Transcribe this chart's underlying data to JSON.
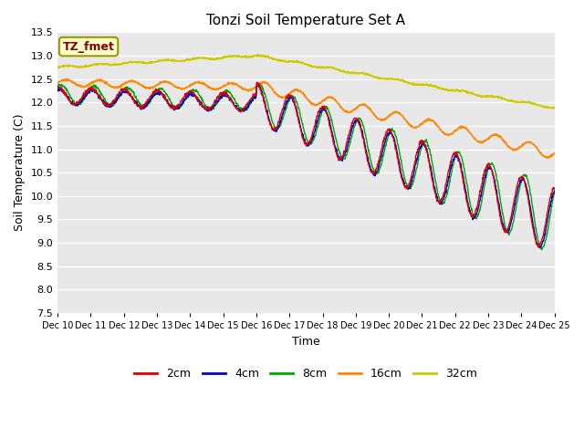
{
  "title": "Tonzi Soil Temperature Set A",
  "xlabel": "Time",
  "ylabel": "Soil Temperature (C)",
  "annotation": "TZ_fmet",
  "ylim": [
    7.5,
    13.5
  ],
  "xlim": [
    0,
    15
  ],
  "xtick_labels": [
    "Dec 10",
    "Dec 11",
    "Dec 12",
    "Dec 13",
    "Dec 14",
    "Dec 15",
    "Dec 16",
    "Dec 17",
    "Dec 18",
    "Dec 19",
    "Dec 20",
    "Dec 21",
    "Dec 22",
    "Dec 23",
    "Dec 24",
    "Dec 25"
  ],
  "ytick_values": [
    7.5,
    8.0,
    8.5,
    9.0,
    9.5,
    10.0,
    10.5,
    11.0,
    11.5,
    12.0,
    12.5,
    13.0,
    13.5
  ],
  "colors": {
    "2cm": "#dd0000",
    "4cm": "#0000cc",
    "8cm": "#00aa00",
    "16cm": "#ff8800",
    "32cm": "#cccc00"
  },
  "legend_labels": [
    "2cm",
    "4cm",
    "8cm",
    "16cm",
    "32cm"
  ],
  "plot_bg_color": "#e8e8e8",
  "annotation_bg": "#ffffcc",
  "annotation_text_color": "#880000",
  "n_points": 1440
}
